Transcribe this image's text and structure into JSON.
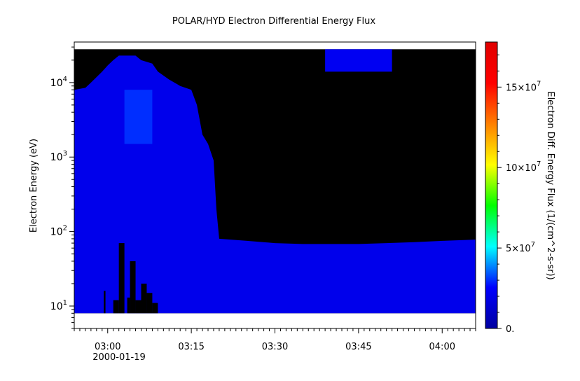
{
  "chart_data": {
    "type": "heatmap",
    "title": "POLAR/HYD  Electron Differential Energy Flux",
    "xlabel": "",
    "ylabel": "Electron Energy (eV)",
    "date_label": "2000-01-19",
    "x_range": [
      "02:54",
      "04:06"
    ],
    "x_ticks": [
      "03:00",
      "03:15",
      "03:30",
      "03:45",
      "04:00"
    ],
    "y_scale": "log",
    "y_range": [
      5,
      35000
    ],
    "y_ticks": [
      {
        "value": 10,
        "base": "10",
        "exp": "1"
      },
      {
        "value": 100,
        "base": "10",
        "exp": "2"
      },
      {
        "value": 1000,
        "base": "10",
        "exp": "3"
      },
      {
        "value": 10000,
        "base": "10",
        "exp": "4"
      }
    ],
    "data_energy_range_ev": [
      8,
      28000
    ],
    "no_data_color": "#000000",
    "colorbar": {
      "label": "Electron Diff. Energy Flux (1/(cm^2-s-sr))",
      "range": [
        0,
        178000000
      ],
      "ticks": [
        {
          "value": 0,
          "label": "0."
        },
        {
          "value": 50000000,
          "label": "5×10",
          "exp": "7"
        },
        {
          "value": 100000000,
          "label": "10×10",
          "exp": "7"
        },
        {
          "value": 150000000,
          "label": "15×10",
          "exp": "7"
        }
      ],
      "colors": [
        "#0000a0",
        "#0000ff",
        "#00ffff",
        "#00ff00",
        "#ffff00",
        "#ff8000",
        "#ff0000",
        "#e00000"
      ]
    },
    "upper_boundary": [
      [
        "02:54",
        8000
      ],
      [
        "02:56",
        8500
      ],
      [
        "02:57",
        10000
      ],
      [
        "02:59",
        14000
      ],
      [
        "03:00",
        17000
      ],
      [
        "03:01",
        20000
      ],
      [
        "03:02",
        23000
      ],
      [
        "03:05",
        23000
      ],
      [
        "03:06",
        20000
      ],
      [
        "03:08",
        18000
      ],
      [
        "03:09",
        14000
      ],
      [
        "03:11",
        11000
      ],
      [
        "03:13",
        9000
      ],
      [
        "03:15",
        8000
      ],
      [
        "03:16",
        5000
      ],
      [
        "03:17",
        2000
      ],
      [
        "03:18",
        1500
      ],
      [
        "03:19",
        900
      ],
      [
        "03:19.5",
        200
      ],
      [
        "03:20",
        80
      ],
      [
        "03:25",
        75
      ],
      [
        "03:30",
        70
      ],
      [
        "03:35",
        68
      ],
      [
        "03:40",
        68
      ],
      [
        "03:45",
        68
      ],
      [
        "03:50",
        70
      ],
      [
        "03:55",
        72
      ],
      [
        "04:00",
        75
      ],
      [
        "04:06",
        78
      ]
    ],
    "patches": [
      {
        "start": "03:39",
        "end": "03:51",
        "energy": [
          14000,
          28000
        ],
        "flux": 22000000
      },
      {
        "start": "03:03",
        "end": "03:08",
        "energy": [
          1500,
          8000
        ],
        "flux": 30000000
      }
    ],
    "gaps": [
      {
        "start": "02:59.3",
        "end": "02:59.6",
        "energy": [
          8,
          16
        ]
      },
      {
        "start": "03:01",
        "end": "03:02",
        "energy": [
          8,
          12
        ]
      },
      {
        "start": "03:02",
        "end": "03:03",
        "energy": [
          8,
          70
        ]
      },
      {
        "start": "03:03.5",
        "end": "03:04",
        "energy": [
          8,
          13
        ]
      },
      {
        "start": "03:04",
        "end": "03:05",
        "energy": [
          8,
          40
        ]
      },
      {
        "start": "03:05",
        "end": "03:06",
        "energy": [
          8,
          12
        ]
      },
      {
        "start": "03:06",
        "end": "03:07",
        "energy": [
          8,
          20
        ]
      },
      {
        "start": "03:07",
        "end": "03:08",
        "energy": [
          8,
          15
        ]
      },
      {
        "start": "03:08",
        "end": "03:09",
        "energy": [
          8,
          11
        ]
      }
    ],
    "base_flux": 20000000
  }
}
